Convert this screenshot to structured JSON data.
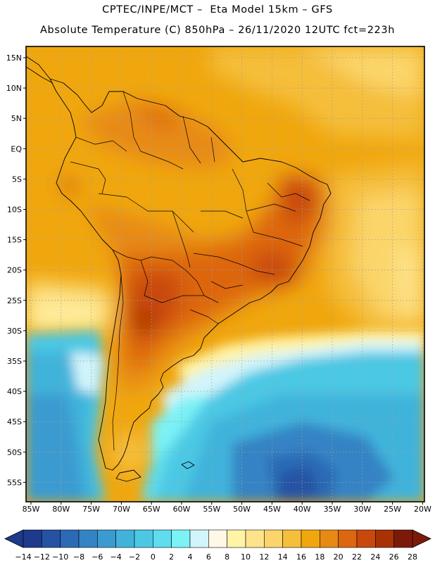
{
  "header": {
    "line1": "CPTEC/INPE/MCT –  Eta Model 15km – GFS",
    "line2": "Absolute Temperature (C) 850hPa – 26/11/2020 12UTC fct=223h"
  },
  "latitude_labels": [
    "15N",
    "10N",
    "5N",
    "EQ",
    "5S",
    "10S",
    "15S",
    "20S",
    "25S",
    "30S",
    "35S",
    "40S",
    "45S",
    "50S",
    "55S"
  ],
  "longitude_labels": [
    "85W",
    "80W",
    "75W",
    "70W",
    "65W",
    "60W",
    "55W",
    "50W",
    "45W",
    "40W",
    "35W",
    "30W",
    "25W",
    "20W"
  ],
  "legend": {
    "ticks": [
      "−14",
      "−12",
      "−10",
      "−8",
      "−6",
      "−4",
      "−2",
      "0",
      "2",
      "4",
      "6",
      "8",
      "10",
      "12",
      "14",
      "16",
      "18",
      "20",
      "22",
      "24",
      "26",
      "28"
    ],
    "colors": [
      "#1d3a8c",
      "#2553a3",
      "#2c6ab5",
      "#3483c4",
      "#3b9bd0",
      "#41b3db",
      "#4cc8e4",
      "#5fdced",
      "#7cf2f6",
      "#d2f4fb",
      "#fff8e6",
      "#fff3a6",
      "#fde38a",
      "#fbd56b",
      "#f5be3b",
      "#f0a70e",
      "#e78a13",
      "#dd6611",
      "#c9490d",
      "#a93205",
      "#7c1a0a"
    ],
    "under_color": "#1d3a8c",
    "over_color": "#7c1a0a"
  }
}
